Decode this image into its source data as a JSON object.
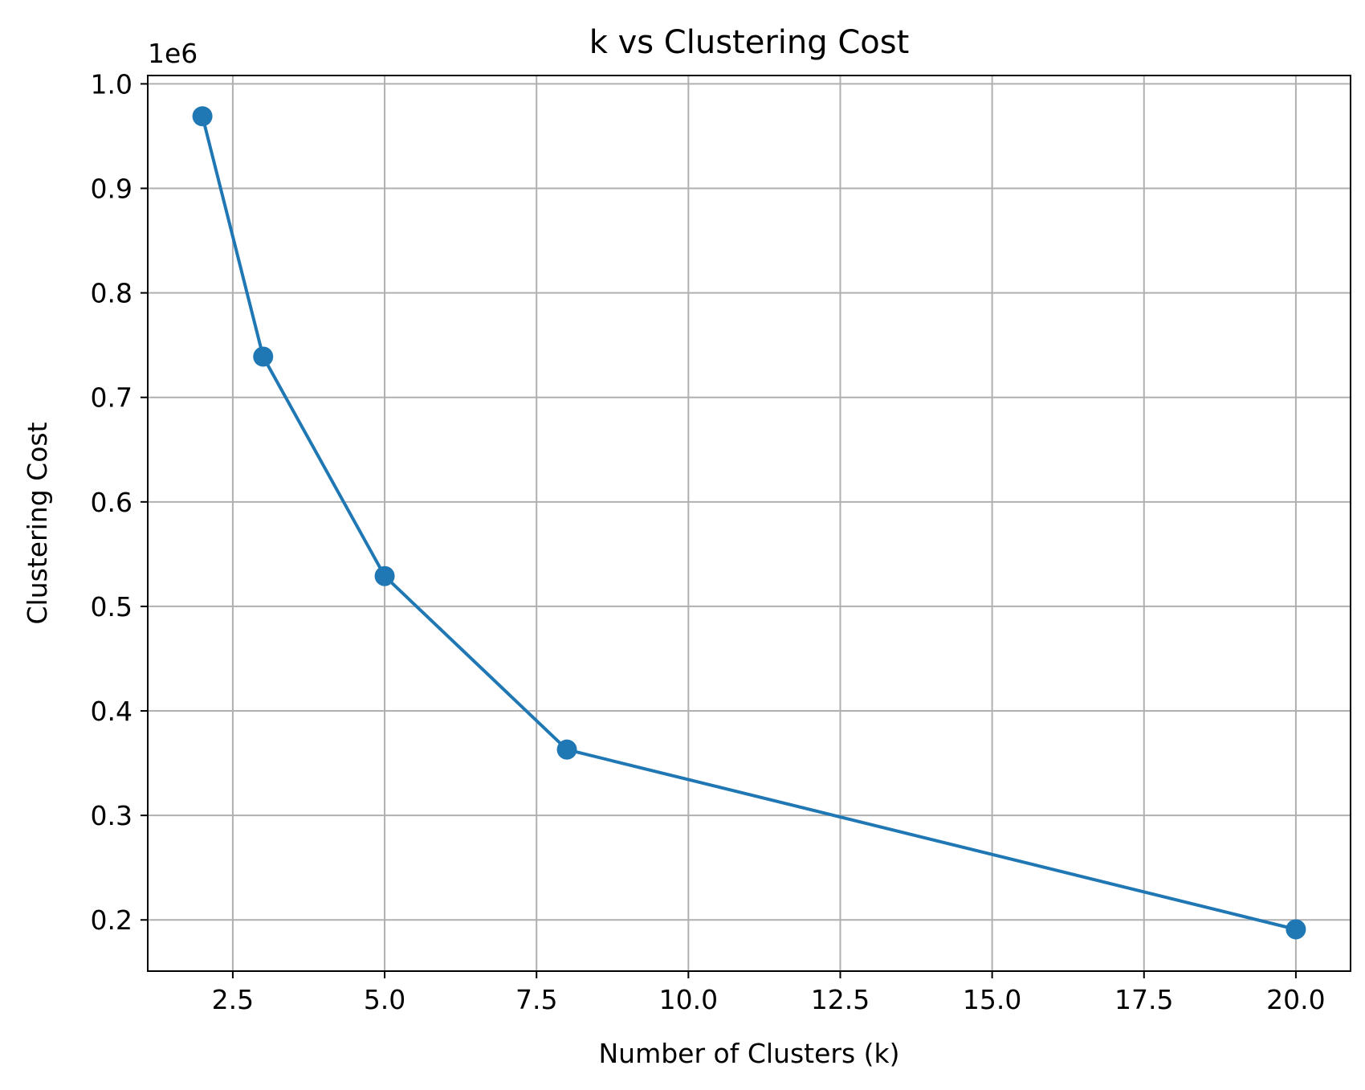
{
  "chart_data": {
    "type": "line",
    "title": "k vs Clustering Cost",
    "xlabel": "Number of Clusters (k)",
    "ylabel": "Clustering Cost",
    "y_offset_label": "1e6",
    "xlim": [
      1.1,
      20.9
    ],
    "ylim": [
      0.151,
      1.008
    ],
    "x_ticks": [
      2.5,
      5.0,
      7.5,
      10.0,
      12.5,
      15.0,
      17.5,
      20.0
    ],
    "x_tick_labels": [
      "2.5",
      "5.0",
      "7.5",
      "10.0",
      "12.5",
      "15.0",
      "17.5",
      "20.0"
    ],
    "y_ticks": [
      0.2,
      0.3,
      0.4,
      0.5,
      0.6,
      0.7,
      0.8,
      0.9,
      1.0
    ],
    "y_tick_labels": [
      "0.2",
      "0.3",
      "0.4",
      "0.5",
      "0.6",
      "0.7",
      "0.8",
      "0.9",
      "1.0"
    ],
    "grid": true,
    "marker": "circle",
    "color": "#1f77b4",
    "x": [
      2,
      3,
      5,
      8,
      20
    ],
    "y": [
      0.969,
      0.739,
      0.529,
      0.363,
      0.191
    ]
  }
}
